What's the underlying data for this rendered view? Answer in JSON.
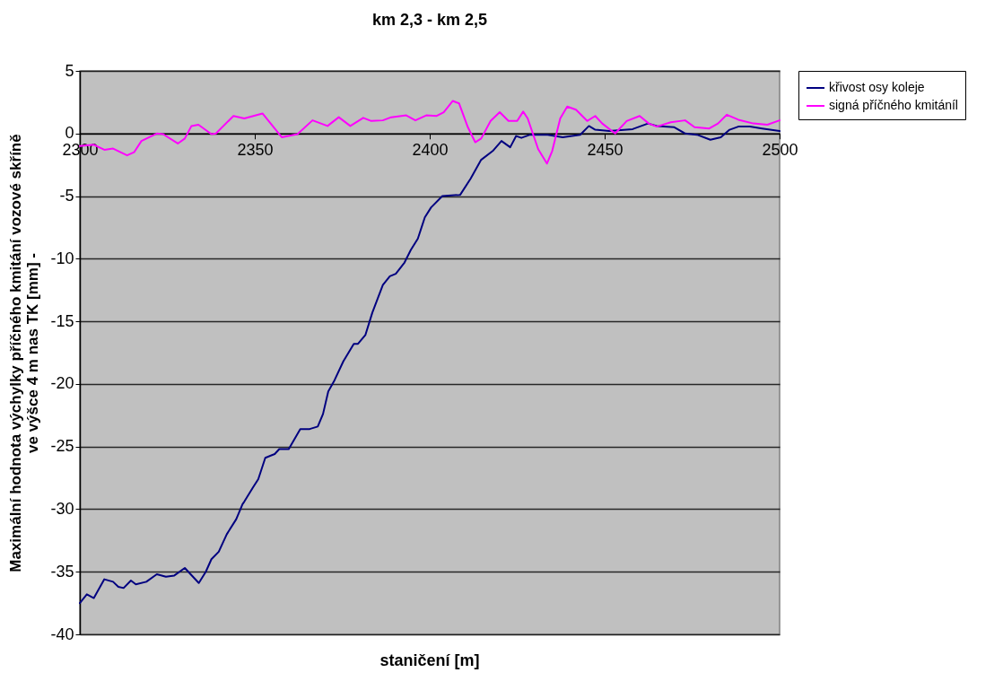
{
  "chart_data": {
    "type": "line",
    "title": "km 2,3 - km 2,5",
    "xlabel": "staničení [m]",
    "ylabel": "Maximální hodnota výchylky příčného kmitání vozové skříně\nve výšce 4 m nas TK [mm] -",
    "xlim": [
      2300,
      2500
    ],
    "xticks": [
      2300,
      2350,
      2400,
      2450,
      2500
    ],
    "ylim": [
      -40,
      5
    ],
    "yticks": [
      -40,
      -35,
      -30,
      -25,
      -20,
      -15,
      -10,
      -5,
      0,
      5
    ],
    "grid": "y",
    "legend": "right",
    "line_style": "solid",
    "marker": "none",
    "series": [
      {
        "name": "křivost osy koleje",
        "color": "#000080",
        "x": [
          2300,
          2302,
          2304,
          2307,
          2309.5,
          2311,
          2312.5,
          2314.6,
          2316,
          2319,
          2322,
          2324.6,
          2327,
          2330,
          2331,
          2334,
          2336,
          2337.6,
          2339.7,
          2342,
          2344.7,
          2346.5,
          2347,
          2349.4,
          2351,
          2353,
          2355.7,
          2357,
          2359.7,
          2363,
          2365.7,
          2368,
          2369.5,
          2371,
          2372.8,
          2375.3,
          2378.3,
          2379.5,
          2381.6,
          2383.6,
          2386.6,
          2388.6,
          2390.3,
          2392.8,
          2394.6,
          2396.6,
          2398.6,
          2400.4,
          2403.6,
          2408.7,
          2411.7,
          2414.7,
          2418,
          2420.5,
          2423,
          2424.7,
          2426.2,
          2428.7,
          2433.7,
          2438,
          2443,
          2445.5,
          2447.3,
          2451.3,
          2458,
          2462.4,
          2464.9,
          2469.9,
          2473,
          2476.4,
          2480.2,
          2483.2,
          2485.7,
          2488.2,
          2491.5,
          2495,
          2500
        ],
        "values": [
          -37.5,
          -36.8,
          -37.1,
          -35.6,
          -35.8,
          -36.2,
          -36.3,
          -35.7,
          -36.0,
          -35.8,
          -35.2,
          -35.4,
          -35.3,
          -34.7,
          -35.0,
          -35.9,
          -35.0,
          -34.0,
          -33.4,
          -32.0,
          -30.8,
          -29.6,
          -29.4,
          -28.3,
          -27.6,
          -25.9,
          -25.6,
          -25.2,
          -25.2,
          -23.6,
          -23.6,
          -23.4,
          -22.4,
          -20.6,
          -19.7,
          -18.2,
          -16.8,
          -16.8,
          -16.1,
          -14.3,
          -12.1,
          -11.4,
          -11.2,
          -10.3,
          -9.3,
          -8.4,
          -6.7,
          -5.9,
          -5.0,
          -4.9,
          -3.6,
          -2.1,
          -1.4,
          -0.6,
          -1.1,
          -0.2,
          -0.35,
          -0.1,
          -0.1,
          -0.3,
          -0.1,
          0.6,
          0.3,
          0.2,
          0.35,
          0.8,
          0.6,
          0.5,
          0.0,
          -0.1,
          -0.5,
          -0.3,
          0.3,
          0.55,
          0.55,
          0.4,
          0.2
        ]
      },
      {
        "name": "signá příčného kmitáníl",
        "color": "#ff00ff",
        "x": [
          2300,
          2304,
          2307,
          2309.5,
          2313.5,
          2315.5,
          2317.6,
          2322,
          2323.8,
          2328,
          2330,
          2331.9,
          2333.9,
          2337.6,
          2338.9,
          2343.9,
          2347,
          2352.2,
          2357.7,
          2362.2,
          2366.5,
          2370.8,
          2374,
          2377.3,
          2381,
          2383.3,
          2386.6,
          2389,
          2393.3,
          2395.9,
          2399,
          2402,
          2404,
          2406.6,
          2408.4,
          2410.9,
          2413,
          2414.7,
          2417.4,
          2420,
          2422.5,
          2425,
          2426.7,
          2428,
          2431,
          2433.5,
          2435,
          2437.3,
          2439.3,
          2441.8,
          2445,
          2447.3,
          2449.3,
          2453,
          2456.3,
          2460,
          2462.6,
          2464.9,
          2468.9,
          2473,
          2475.7,
          2479.9,
          2482.4,
          2484.9,
          2488.2,
          2492.5,
          2496.5,
          2500
        ],
        "values": [
          -1.0,
          -0.9,
          -1.3,
          -1.2,
          -1.75,
          -1.5,
          -0.6,
          0.0,
          -0.05,
          -0.8,
          -0.4,
          0.6,
          0.7,
          -0.05,
          0.0,
          1.4,
          1.2,
          1.6,
          -0.3,
          -0.05,
          1.05,
          0.6,
          1.3,
          0.6,
          1.25,
          1.0,
          1.05,
          1.3,
          1.45,
          1.05,
          1.45,
          1.4,
          1.7,
          2.6,
          2.4,
          0.5,
          -0.7,
          -0.4,
          1.0,
          1.7,
          1.0,
          1.0,
          1.75,
          1.2,
          -1.25,
          -2.4,
          -1.4,
          1.2,
          2.15,
          1.9,
          1.0,
          1.4,
          0.8,
          0.0,
          1.0,
          1.4,
          0.8,
          0.55,
          0.9,
          1.05,
          0.5,
          0.4,
          0.8,
          1.5,
          1.1,
          0.8,
          0.7,
          1.05
        ]
      }
    ]
  }
}
